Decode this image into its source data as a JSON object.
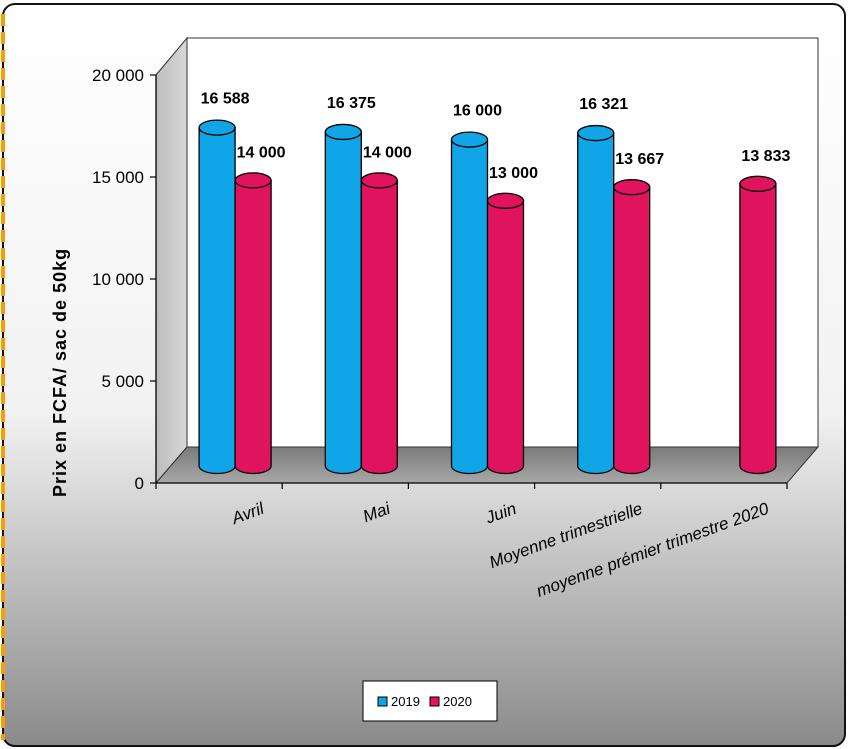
{
  "chart_data": {
    "type": "bar",
    "title": "",
    "xlabel": "",
    "ylabel": "Prix en FCFA/ sac de 50kg",
    "ylim": [
      0,
      20000
    ],
    "yticks": [
      "0",
      "5 000",
      "10 000",
      "15 000",
      "20 000"
    ],
    "ytick_values": [
      0,
      5000,
      10000,
      15000,
      20000
    ],
    "categories": [
      "Avril",
      "Mai",
      "Juin",
      "Moyenne trimestrielle",
      "moyenne prémier trimestre 2020"
    ],
    "series": [
      {
        "name": "2019",
        "color": "#0fa5e6",
        "values": [
          16588,
          16375,
          16000,
          16321,
          null
        ],
        "labels": [
          "16 588",
          "16 375",
          "16 000",
          "16 321",
          ""
        ]
      },
      {
        "name": "2020",
        "color": "#e0135f",
        "values": [
          14000,
          14000,
          13000,
          13667,
          13833
        ],
        "labels": [
          "14 000",
          "14 000",
          "13 000",
          "13 667",
          "13 833"
        ]
      }
    ],
    "legend": "bottom-center",
    "grid": false
  }
}
